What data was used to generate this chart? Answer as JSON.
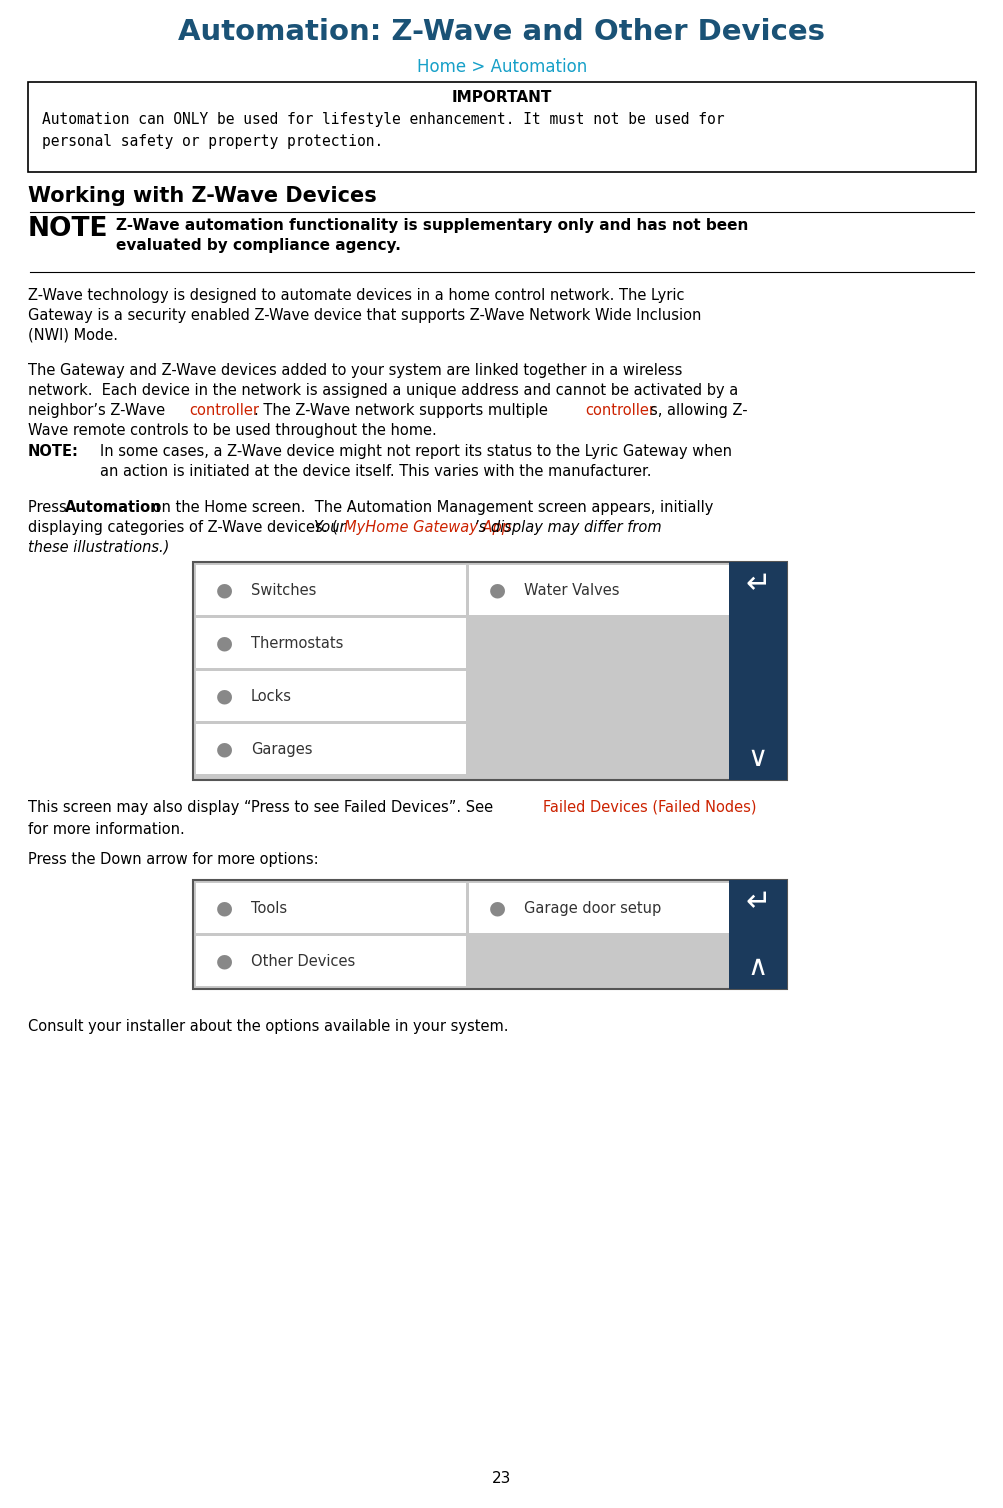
{
  "title": "Automation: Z-Wave and Other Devices",
  "subtitle": "Home > Automation",
  "title_color": "#1a5276",
  "subtitle_color": "#17a0c8",
  "important_label": "IMPORTANT",
  "important_line1": "Automation can ONLY be used for lifestyle enhancement. It must not be used for",
  "important_line2": "personal safety or property protection.",
  "working_heading": "Working with Z-Wave Devices",
  "note_label": "NOTE",
  "note_line1": "Z-Wave automation functionality is supplementary only and has not been",
  "note_line2": "evaluated by compliance agency.",
  "para1_line1": "Z-Wave technology is designed to automate devices in a home control network. The Lyric",
  "para1_line2": "Gateway is a security enabled Z-Wave device that supports Z-Wave Network Wide Inclusion",
  "para1_line3": "(NWI) Mode.",
  "para2_line1": "The Gateway and Z-Wave devices added to your system are linked together in a wireless",
  "para2_line2": "network.  Each device in the network is assigned a unique address and cannot be activated by a",
  "para2_line3_pre": "neighbor’s Z-Wave ",
  "para2_line3_red1": "controller",
  "para2_line3_mid": ". The Z-Wave network supports multiple ",
  "para2_line3_red2": "controller",
  "para2_line3_post": "s, allowing Z-",
  "para2_line4": "Wave remote controls to be used throughout the home.",
  "note2_label": "NOTE:",
  "note2_line1": "In some cases, a Z-Wave device might not report its status to the Lyric Gateway when",
  "note2_line2": "an action is initiated at the device itself. This varies with the manufacturer.",
  "press_pre": "Press ",
  "press_bold": "Automation",
  "press_post": " on the Home screen.  The Automation Management screen appears, initially",
  "press_line2_pre": "displaying categories of Z-Wave devices. (",
  "press_line2_your": "Your ",
  "press_line2_red": "MyHome Gateway App",
  "press_line2_post": "’s display may differ from",
  "press_line3": "these illustrations.)",
  "screen1_left": [
    "Switches",
    "Thermostats",
    "Locks",
    "Garages"
  ],
  "screen1_right": [
    "Water Valves"
  ],
  "screen2_left": [
    "Tools",
    "Other Devices"
  ],
  "screen2_right": [
    "Garage door setup"
  ],
  "failed_pre": "This screen may also display “Press to see Failed Devices”. See ",
  "failed_link": "Failed Devices (Failed Nodes)",
  "failed_post": "for more information.",
  "down_text": "Press the Down arrow for more options:",
  "consult_text": "Consult your installer about the options available in your system.",
  "page_num": "23",
  "red_color": "#cc2200",
  "nav_color": "#1b3a5c",
  "cell_bg": "#ffffff",
  "screen_bg": "#c8c8c8",
  "text_color": "#000000",
  "bg_color": "#ffffff"
}
